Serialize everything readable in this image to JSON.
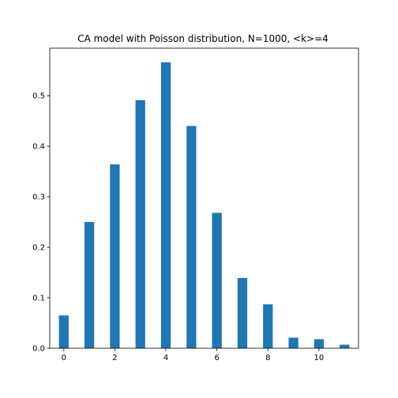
{
  "chart_data": {
    "type": "bar",
    "title": "CA model with Poisson distribution, N=1000, <k>=4",
    "xlabel": "",
    "ylabel": "",
    "x": [
      0,
      1,
      2,
      3,
      4,
      5,
      6,
      7,
      8,
      9,
      10,
      11
    ],
    "values": [
      0.065,
      0.25,
      0.364,
      0.491,
      0.566,
      0.44,
      0.268,
      0.139,
      0.087,
      0.021,
      0.018,
      0.007
    ],
    "xlim": [
      -0.55,
      11.55
    ],
    "ylim": [
      0,
      0.594
    ],
    "xticks": [
      0,
      2,
      4,
      6,
      8,
      10
    ],
    "yticks": [
      0.0,
      0.1,
      0.2,
      0.3,
      0.4,
      0.5
    ],
    "xtick_labels": [
      "0",
      "2",
      "4",
      "6",
      "8",
      "10"
    ],
    "ytick_labels": [
      "0.0",
      "0.1",
      "0.2",
      "0.3",
      "0.4",
      "0.5"
    ],
    "bar_color": "#1f77b4",
    "grid": false,
    "legend": "none"
  }
}
